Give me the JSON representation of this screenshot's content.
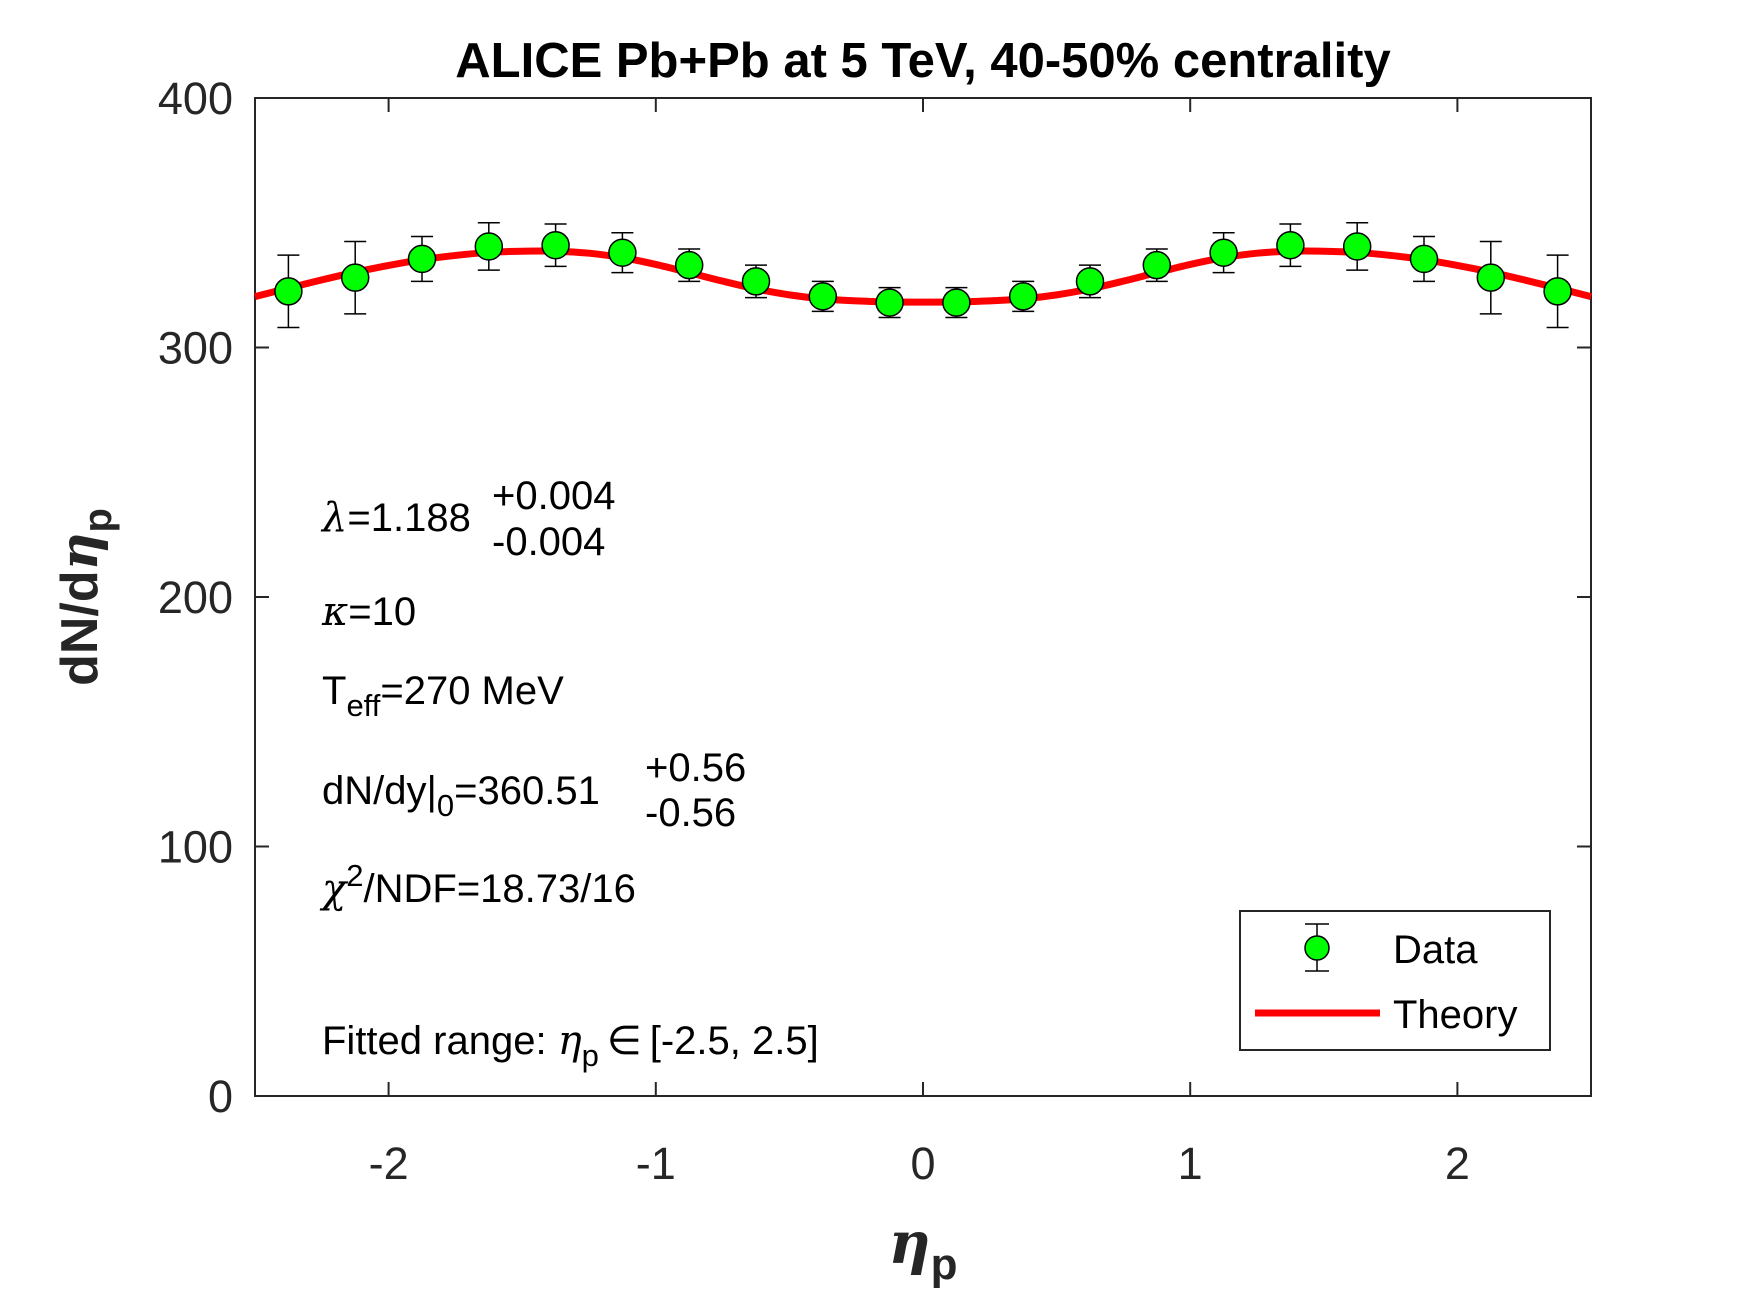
{
  "chart_data": {
    "type": "scatter",
    "title": "ALICE Pb+Pb at 5 TeV, 40-50% centrality",
    "xlabel": {
      "symbol": "η",
      "sub": "p"
    },
    "ylabel": {
      "text": "dN/d",
      "symbol": "η",
      "sub": "p"
    },
    "xlim": [
      -2.5,
      2.5
    ],
    "ylim": [
      0,
      400
    ],
    "xticks": [
      -2,
      -1,
      0,
      1,
      2
    ],
    "xtick_labels": [
      "-2",
      "-1",
      "0",
      "1",
      "2"
    ],
    "yticks": [
      0,
      100,
      200,
      300,
      400
    ],
    "ytick_labels": [
      "0",
      "100",
      "200",
      "300",
      "400"
    ],
    "series": [
      {
        "name": "Data",
        "kind": "points-with-errorbars",
        "color": "#00ff00",
        "x": [
          -2.375,
          -2.125,
          -1.875,
          -1.625,
          -1.375,
          -1.125,
          -0.875,
          -0.625,
          -0.375,
          -0.125,
          0.125,
          0.375,
          0.625,
          0.875,
          1.125,
          1.375,
          1.625,
          1.875,
          2.125,
          2.375
        ],
        "y": [
          322.5,
          328,
          335.5,
          340.5,
          341,
          338,
          333,
          326.5,
          320.5,
          318,
          318,
          320.5,
          326.5,
          333,
          338,
          341,
          340.5,
          335.5,
          328,
          322.5
        ],
        "err": [
          14.5,
          14.5,
          9,
          9.5,
          8.5,
          8,
          6.5,
          6.5,
          6,
          6,
          6,
          6,
          6.5,
          6.5,
          8,
          8.5,
          9.5,
          9,
          14.5,
          14.5
        ]
      },
      {
        "name": "Theory",
        "kind": "line",
        "color": "#ff0000",
        "x": [
          -2.5,
          -2.375,
          -2.25,
          -2.125,
          -2.0,
          -1.875,
          -1.75,
          -1.625,
          -1.5,
          -1.375,
          -1.25,
          -1.125,
          -1.0,
          -0.875,
          -0.75,
          -0.625,
          -0.5,
          -0.375,
          -0.25,
          -0.125,
          0.0,
          0.125,
          0.25,
          0.375,
          0.5,
          0.625,
          0.75,
          0.875,
          1.0,
          1.125,
          1.25,
          1.375,
          1.5,
          1.625,
          1.75,
          1.875,
          2.0,
          2.125,
          2.25,
          2.375,
          2.5
        ],
        "y": [
          320.4,
          323.8,
          327.1,
          330.2,
          332.9,
          335.2,
          336.9,
          338.1,
          338.6,
          338.6,
          337.8,
          336.0,
          333.3,
          330.0,
          326.6,
          323.5,
          321.1,
          319.5,
          318.7,
          318.3,
          318.2,
          318.3,
          318.7,
          319.5,
          321.1,
          323.5,
          326.6,
          330.0,
          333.3,
          336.0,
          337.8,
          338.6,
          338.6,
          338.1,
          336.9,
          335.2,
          332.9,
          330.2,
          327.1,
          323.8,
          320.4
        ]
      }
    ],
    "legend": {
      "placement": "bottom-right",
      "entries": [
        "Data",
        "Theory"
      ]
    },
    "annotations": {
      "lambda": {
        "symbol": "λ",
        "text": "=1.188",
        "sup": "+0.004",
        "sub": "-0.004"
      },
      "kappa": {
        "symbol": "κ",
        "text": "=10"
      },
      "teff": {
        "base": "T",
        "sub": "eff",
        "text": "=270 MeV"
      },
      "dndy": {
        "base": "dN/dy|",
        "sub0": "0",
        "text": "=360.51",
        "sup": "+0.56",
        "sub": "-0.56"
      },
      "chi2": {
        "symbol": "χ",
        "sup": "2",
        "text": "/NDF=18.73/16"
      },
      "range": {
        "text": "Fitted range: ",
        "symbol": "η",
        "sub": "p",
        "elem": "∈",
        "interval": "[-2.5, 2.5]"
      }
    },
    "grid": false
  }
}
